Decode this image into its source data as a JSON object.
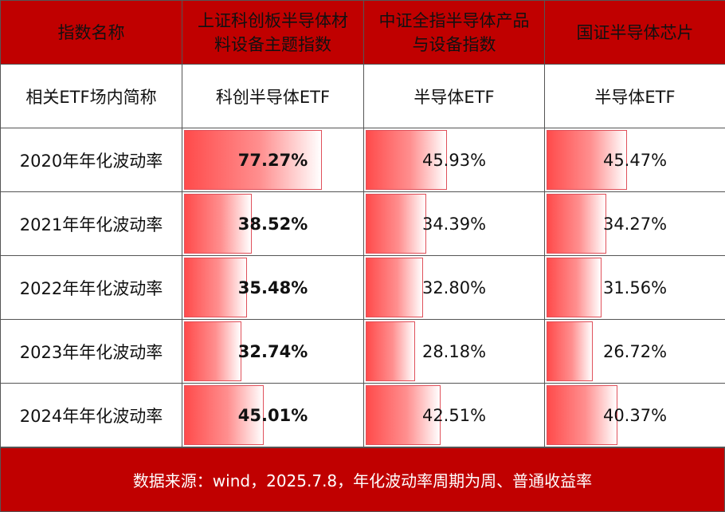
{
  "header": {
    "label": "指数名称",
    "columns": [
      "上证科创板半导体材料设备主题指数",
      "中证全指半导体产品与设备指数",
      "国证半导体芯片"
    ]
  },
  "etf_row": {
    "label": "相关ETF场内简称",
    "values": [
      "科创半导体ETF",
      "半导体ETF",
      "半导体ETF"
    ]
  },
  "rows": [
    {
      "label": "2020年年化波动率",
      "values": [
        "77.27%",
        "45.93%",
        "45.47%"
      ],
      "fractions": [
        0.7727,
        0.4593,
        0.4547
      ]
    },
    {
      "label": "2021年年化波动率",
      "values": [
        "38.52%",
        "34.39%",
        "34.27%"
      ],
      "fractions": [
        0.3852,
        0.3439,
        0.3427
      ]
    },
    {
      "label": "2022年年化波动率",
      "values": [
        "35.48%",
        "32.80%",
        "31.56%"
      ],
      "fractions": [
        0.3548,
        0.328,
        0.3156
      ]
    },
    {
      "label": "2023年年化波动率",
      "values": [
        "32.74%",
        "28.18%",
        "26.72%"
      ],
      "fractions": [
        0.3274,
        0.2818,
        0.2672
      ]
    },
    {
      "label": "2024年年化波动率",
      "values": [
        "45.01%",
        "42.51%",
        "40.37%"
      ],
      "fractions": [
        0.4501,
        0.4251,
        0.4037
      ]
    }
  ],
  "footer": {
    "source": "数据来源：wind，2025.7.8，年化波动率周期为周、普通收益率"
  },
  "colors": {
    "header_bg": "#c00000",
    "bar_start": "#ff4b4b",
    "bar_end": "#ffffff"
  }
}
